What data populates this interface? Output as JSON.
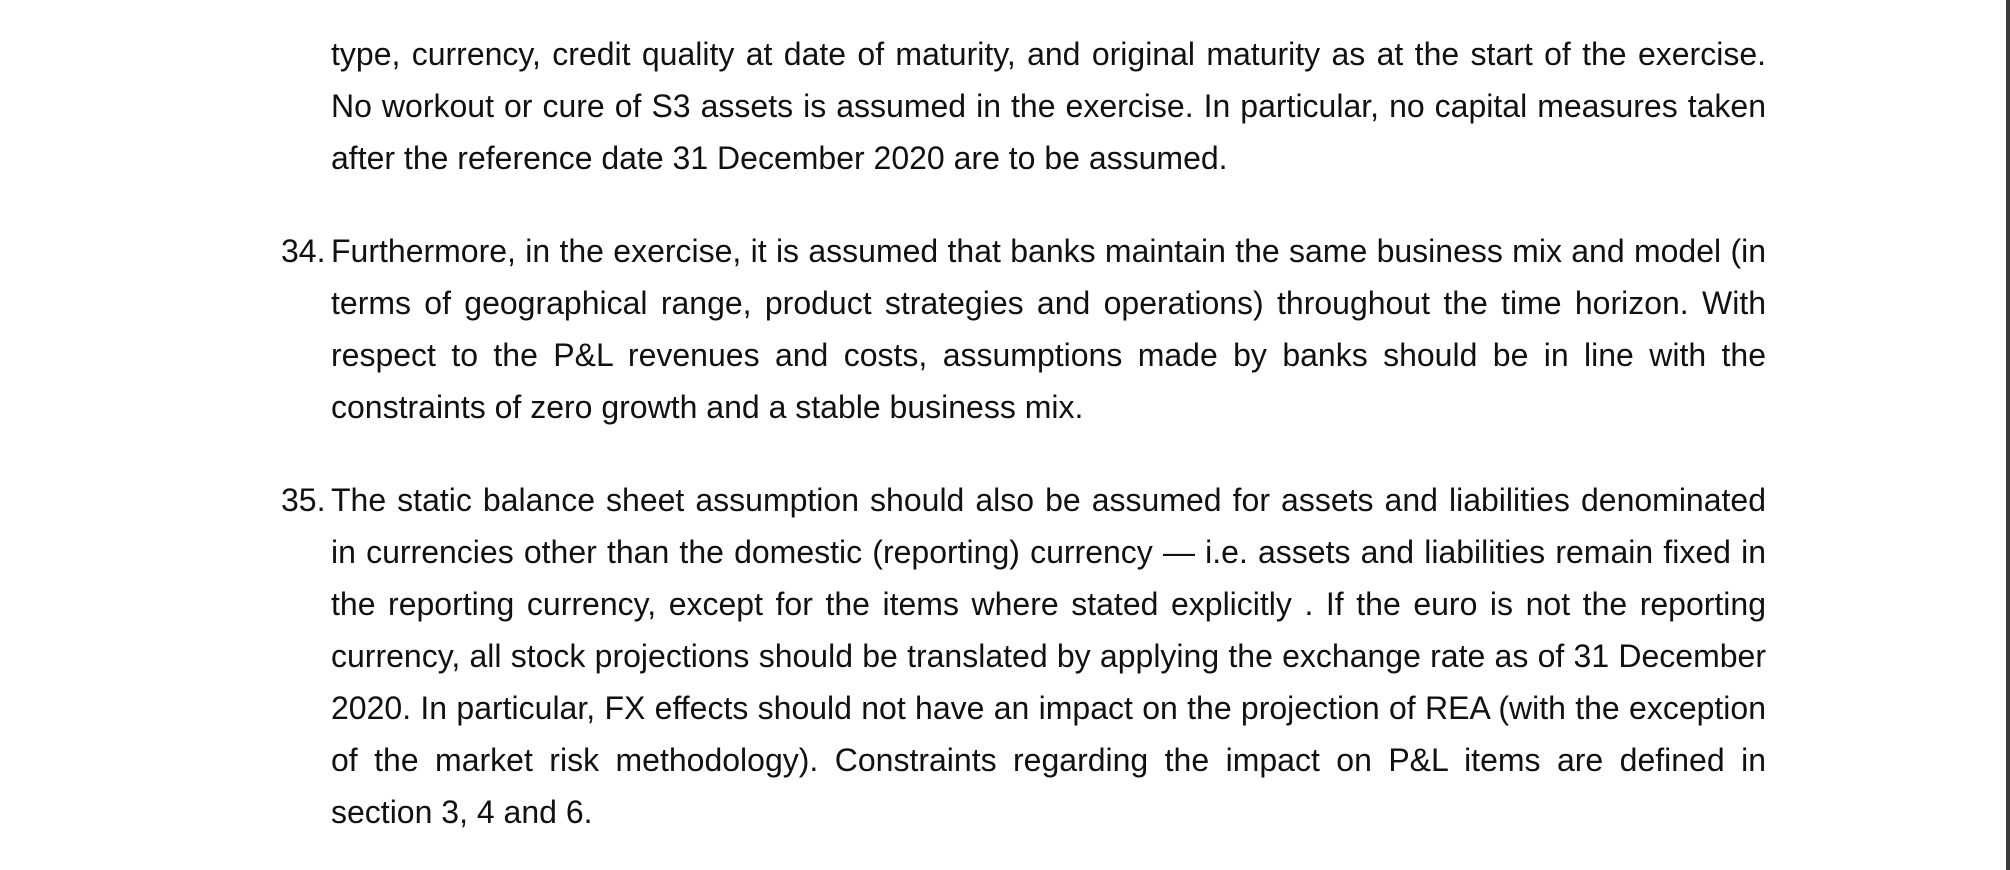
{
  "document": {
    "paragraphs": [
      {
        "number": "",
        "text": "type, currency, credit quality at date of maturity, and original maturity as at the start of the exercise. No workout or cure of S3 assets is assumed in the exercise. In particular, no capital measures taken after the reference date 31 December 2020 are to be assumed."
      },
      {
        "number": "34.",
        "text": "Furthermore, in the exercise, it is assumed that banks maintain the same business mix and model (in terms of geographical range, product strategies and operations) throughout the time horizon. With respect to the P&L revenues and costs, assumptions made by banks should be in line with the constraints of zero growth and a stable business mix."
      },
      {
        "number": "35.",
        "text": "The static balance sheet assumption should also be assumed for assets and liabilities denominated in currencies other than the domestic (reporting) currency — i.e. assets and liabilities remain fixed in the reporting currency, except for the items where stated explicitly . If the euro is not the reporting currency, all stock projections should be translated by applying the exchange rate as of 31 December 2020. In particular, FX effects should not have an impact on the projection of REA (with the exception of the market risk methodology). Constraints regarding the impact on P&L items are defined in section 3, 4 and 6."
      }
    ]
  }
}
